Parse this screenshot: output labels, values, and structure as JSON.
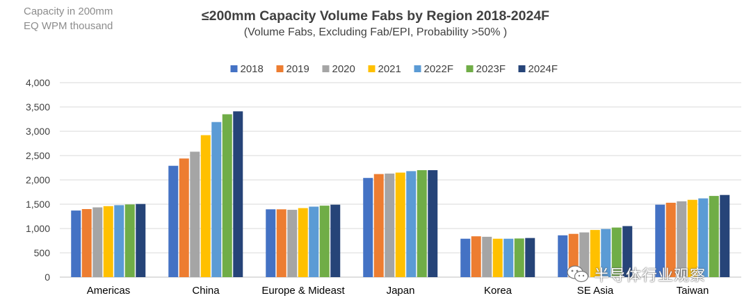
{
  "header": {
    "unit_line1": "Capacity in 200mm",
    "unit_line2": "EQ WPM thousand",
    "title": "≤200mm Capacity Volume Fabs by Region 2018-2024F",
    "subtitle": "(Volume Fabs, Excluding Fab/EPI, Probability >50% )"
  },
  "watermark": {
    "text": "半导体行业观察",
    "icon": "wechat-icon"
  },
  "chart_data": {
    "type": "bar",
    "title": "≤200mm Capacity Volume Fabs by Region 2018-2024F",
    "subtitle": "(Volume Fabs, Excluding Fab/EPI, Probability >50% )",
    "ylabel": "Capacity in 200mm EQ WPM thousand",
    "ylim": [
      0,
      4000
    ],
    "yticks": [
      0,
      500,
      1000,
      1500,
      2000,
      2500,
      3000,
      3500,
      4000
    ],
    "ytick_labels": [
      "0",
      "500",
      "1,000",
      "1,500",
      "2,000",
      "2,500",
      "3,000",
      "3,500",
      "4,000"
    ],
    "grid": true,
    "legend_position": "top",
    "categories": [
      "Americas",
      "China",
      "Europe & Mideast",
      "Japan",
      "Korea",
      "SE Asia",
      "Taiwan"
    ],
    "series": [
      {
        "name": "2018",
        "color": "#4472c4",
        "values": [
          1370,
          2290,
          1395,
          2040,
          790,
          860,
          1490
        ]
      },
      {
        "name": "2019",
        "color": "#ed7d31",
        "values": [
          1400,
          2440,
          1395,
          2120,
          840,
          890,
          1530
        ]
      },
      {
        "name": "2020",
        "color": "#a5a5a5",
        "values": [
          1435,
          2580,
          1385,
          2130,
          830,
          920,
          1560
        ]
      },
      {
        "name": "2021",
        "color": "#ffc000",
        "values": [
          1460,
          2920,
          1420,
          2150,
          790,
          970,
          1590
        ]
      },
      {
        "name": "2022F",
        "color": "#5b9bd5",
        "values": [
          1480,
          3190,
          1450,
          2180,
          790,
          990,
          1620
        ]
      },
      {
        "name": "2023F",
        "color": "#70ad47",
        "values": [
          1495,
          3350,
          1470,
          2200,
          795,
          1020,
          1670
        ]
      },
      {
        "name": "2024F",
        "color": "#264478",
        "values": [
          1505,
          3410,
          1490,
          2200,
          805,
          1050,
          1690
        ]
      }
    ]
  }
}
